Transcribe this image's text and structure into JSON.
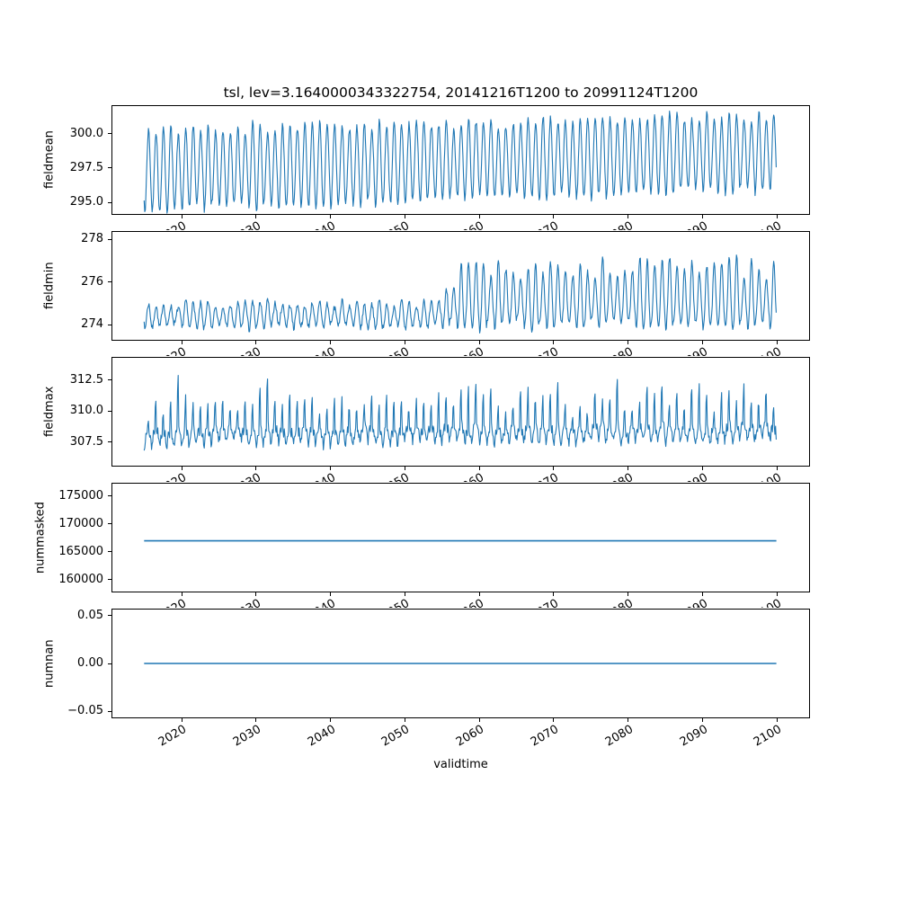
{
  "figure": {
    "background": "#ffffff"
  },
  "chart_data": {
    "type": "line",
    "title": "tsl, lev=3.1640000343322754, 20141216T1200 to 20991124T1200",
    "xlabel": "validtime",
    "line_color": "#1f77b4",
    "legend": "none",
    "grid": false,
    "x_domain": [
      2014.96,
      2099.9
    ],
    "xlim": [
      2010.7,
      2104.3
    ],
    "xticks": [
      2020,
      2030,
      2040,
      2050,
      2060,
      2070,
      2080,
      2090,
      2100
    ],
    "xtick_labels": [
      "2020",
      "2030",
      "2040",
      "2050",
      "2060",
      "2070",
      "2080",
      "2090",
      "2100"
    ],
    "subplots": [
      {
        "name": "fieldmean",
        "ylabel": "fieldmean",
        "ylim": [
          294.15,
          302.0
        ],
        "yticks": [
          295.0,
          297.5,
          300.0
        ],
        "ytick_labels": [
          "295.0",
          "297.5",
          "300.0"
        ],
        "summary": "annual oscillation between ~294.5 and ~301.5, slowly rising over 2015-2100",
        "synth": {
          "kind": "seasonal",
          "t0": 2014.96,
          "t1": 2099.9,
          "samples_per_year": 12,
          "base_start": 297.35,
          "base_end": 298.65,
          "amp_start": 2.85,
          "amp_end": 2.65,
          "amp_jitter": 0.12,
          "base_jitter": 0.15,
          "noise": 0.22,
          "phase": -2.2,
          "seed": 42
        }
      },
      {
        "name": "fieldmin",
        "ylabel": "fieldmin",
        "ylim": [
          273.3,
          278.35
        ],
        "yticks": [
          274,
          276,
          278
        ],
        "ytick_labels": [
          "274",
          "276",
          "278"
        ],
        "summary": "oscillates ~273.6-275.7 until ~2055, then shifts upward with peaks reaching ~277.9",
        "synth": {
          "kind": "seasonal",
          "t0": 2014.96,
          "t1": 2099.9,
          "samples_per_year": 12,
          "base_start": 274.4,
          "base_end": 274.55,
          "amp_start": 0.5,
          "amp_end": 0.55,
          "amp_jitter": 0.3,
          "base_jitter": 0.1,
          "noise": 0.13,
          "phase": -2.2,
          "seed": 7,
          "regime": {
            "start": 2054,
            "ramp_years": 4,
            "base_add": 0.5,
            "amp_add": 0.45,
            "pos_mult": 1.7
          }
        }
      },
      {
        "name": "fieldmax",
        "ylabel": "fieldmax",
        "ylim": [
          305.6,
          314.3
        ],
        "yticks": [
          307.5,
          310.0,
          312.5
        ],
        "ytick_labels": [
          "307.5",
          "310.0",
          "312.5"
        ],
        "summary": "baseline ~308-309 with sharp annual spikes to 311-314 and dips near 306.5",
        "synth": {
          "kind": "spiky",
          "t0": 2014.96,
          "t1": 2099.9,
          "samples_per_year": 12,
          "base_start": 308.25,
          "base_end": 308.6,
          "base_jitter": 0.3,
          "spike_min": 1.6,
          "spike_max": 4.2,
          "spike_extra": 1.3,
          "sharpness": 8,
          "dip": 0.9,
          "noise": 0.4,
          "phase": -1.9,
          "seed": 13
        }
      },
      {
        "name": "nummasked",
        "ylabel": "nummasked",
        "ylim": [
          157900,
          177250
        ],
        "yticks": [
          160000,
          165000,
          170000,
          175000
        ],
        "ytick_labels": [
          "160000",
          "165000",
          "170000",
          "175000"
        ],
        "summary": "constant at 167000 for the whole period",
        "constant": 167000
      },
      {
        "name": "numnan",
        "ylabel": "numnan",
        "ylim": [
          -0.0565,
          0.0565
        ],
        "yticks": [
          -0.05,
          0.0,
          0.05
        ],
        "ytick_labels": [
          "−0.05",
          "0.00",
          "0.05"
        ],
        "summary": "constant at 0 for the whole period",
        "constant": 0
      }
    ]
  }
}
